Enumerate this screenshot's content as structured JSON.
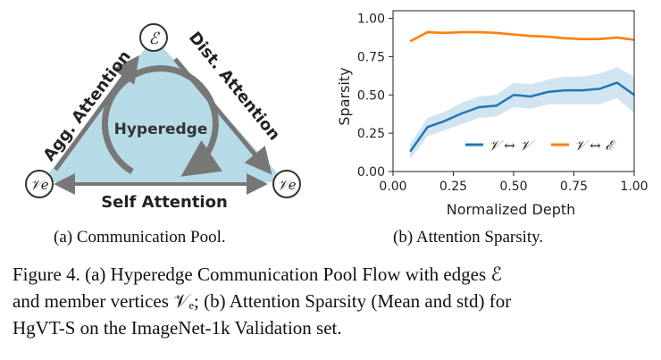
{
  "diagram": {
    "node_top": "ℰ",
    "node_left": "𝒱e",
    "node_right": "𝒱e",
    "center_label": "Hyperedge",
    "left_edge_label": "Agg. Attention",
    "right_edge_label": "Dist. Attention",
    "bottom_edge_label": "Self Attention",
    "fill_color": "#b7dbe6",
    "edge_color": "#777777"
  },
  "captions": {
    "sub_a": "(a) Communication Pool.",
    "sub_b": "(b) Attention Sparsity.",
    "figure_lines": [
      "Figure 4. (a) Hyperedge Communication Pool Flow with edges ℰ",
      "and member vertices 𝒱ₑ; (b) Attention Sparsity (Mean and std) for",
      "HgVT-S on the ImageNet-1k Validation set."
    ]
  },
  "chart_data": {
    "type": "line",
    "title": "",
    "xlabel": "Normalized Depth",
    "ylabel": "Sparsity",
    "xlim": [
      0,
      1.0
    ],
    "ylim": [
      0,
      1.05
    ],
    "xticks": [
      "0.00",
      "0.25",
      "0.50",
      "0.75",
      "1.00"
    ],
    "yticks": [
      "0.00",
      "0.25",
      "0.50",
      "0.75",
      "1.00"
    ],
    "legend_position": "lower-right",
    "series": [
      {
        "name": "𝒱 ↔ 𝒱",
        "color": "#1f77b4",
        "x": [
          0.071,
          0.143,
          0.214,
          0.286,
          0.357,
          0.429,
          0.5,
          0.571,
          0.643,
          0.714,
          0.786,
          0.857,
          0.929,
          1.0
        ],
        "values": [
          0.13,
          0.29,
          0.33,
          0.38,
          0.42,
          0.43,
          0.5,
          0.49,
          0.52,
          0.53,
          0.53,
          0.54,
          0.58,
          0.5
        ],
        "std": [
          0.05,
          0.06,
          0.06,
          0.07,
          0.07,
          0.07,
          0.08,
          0.08,
          0.08,
          0.09,
          0.09,
          0.1,
          0.1,
          0.12
        ]
      },
      {
        "name": "𝒱 ↔ ℰ",
        "color": "#ff7f0e",
        "x": [
          0.071,
          0.143,
          0.214,
          0.286,
          0.357,
          0.429,
          0.5,
          0.571,
          0.643,
          0.714,
          0.786,
          0.857,
          0.929,
          1.0
        ],
        "values": [
          0.85,
          0.91,
          0.905,
          0.91,
          0.91,
          0.905,
          0.895,
          0.885,
          0.88,
          0.87,
          0.865,
          0.865,
          0.875,
          0.86
        ],
        "std": [
          0.01,
          0.01,
          0.01,
          0.01,
          0.01,
          0.01,
          0.01,
          0.01,
          0.01,
          0.01,
          0.01,
          0.01,
          0.01,
          0.01
        ]
      }
    ]
  }
}
